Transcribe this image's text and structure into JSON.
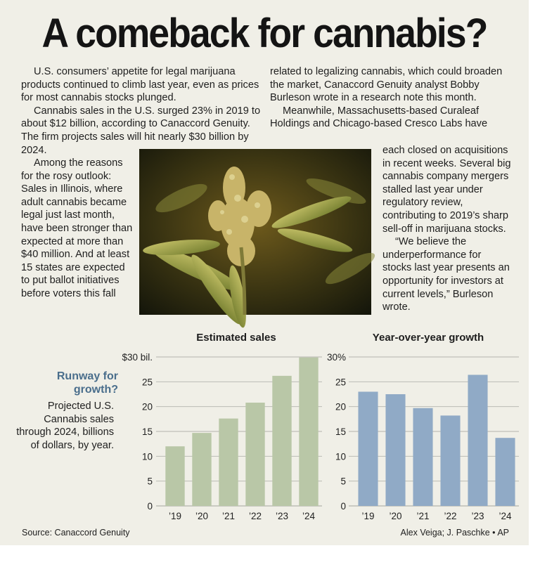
{
  "headline": "A comeback for cannabis?",
  "article": {
    "left_paragraphs": [
      "U.S. consumers’ appetite for legal marijuana products continued to climb last year, even as prices for most cannabis stocks plunged.",
      "Cannabis sales in the U.S. surged 23% in 2019 to about $12 billion, according to Canaccord Genuity. The firm projects sales will hit nearly $30 billion by 2024."
    ],
    "left_narrow_paragraph": "Among the reasons for the rosy outlook: Sales in Illinois, where adult cannabis became legal just last month, have been stronger than expected at more than $40 million. And at least 15 states are expected to put ballot initiatives before voters this fall",
    "right_paragraphs": [
      "related to legalizing cannabis, which could broaden the market, Canaccord Genuity analyst Bobby Burleson wrote in a research note this month.",
      "Meanwhile, Massachusetts-based Curaleaf Holdings and Chicago-based Cresco Labs have"
    ],
    "right_narrow_paragraphs": [
      "each closed on acquisitions in recent weeks. Several big cannabis company mergers stalled last year under regulatory review, contributing to 2019’s sharp sell-off in marijuana stocks.",
      "“We believe the underperformance for stocks last year presents an opportunity for investors at current levels,” Burleson wrote."
    ]
  },
  "sidebar": {
    "title": "Runway for growth?",
    "description": "Projected U.S. Cannabis sales through 2024, billions of dollars, by year."
  },
  "footer": {
    "source": "Source: Canaccord Genuity",
    "credit": "Alex Veiga; J. Paschke • AP"
  },
  "colors": {
    "sales_bar": "#b9c7a7",
    "growth_bar": "#90aac6",
    "sidebar_title": "#4a6e8c",
    "panel": "#f0efe7"
  },
  "chart_data": [
    {
      "type": "bar",
      "title": "Estimated sales",
      "categories": [
        "’19",
        "’20",
        "’21",
        "’22",
        "’23",
        "’24"
      ],
      "values": [
        12,
        14.7,
        17.6,
        20.8,
        26.2,
        29.9
      ],
      "ylim": [
        0,
        30
      ],
      "yticks": [
        "0",
        "5",
        "10",
        "15",
        "20",
        "25",
        "$30 bil."
      ],
      "grid": true
    },
    {
      "type": "bar",
      "title": "Year-over-year growth",
      "categories": [
        "’19",
        "’20",
        "’21",
        "’22",
        "’23",
        "’24"
      ],
      "values": [
        23,
        22.5,
        19.7,
        18.2,
        26.4,
        13.7
      ],
      "ylim": [
        0,
        30
      ],
      "yticks": [
        "0",
        "5",
        "10",
        "15",
        "20",
        "25",
        "30%"
      ],
      "grid": true
    }
  ]
}
